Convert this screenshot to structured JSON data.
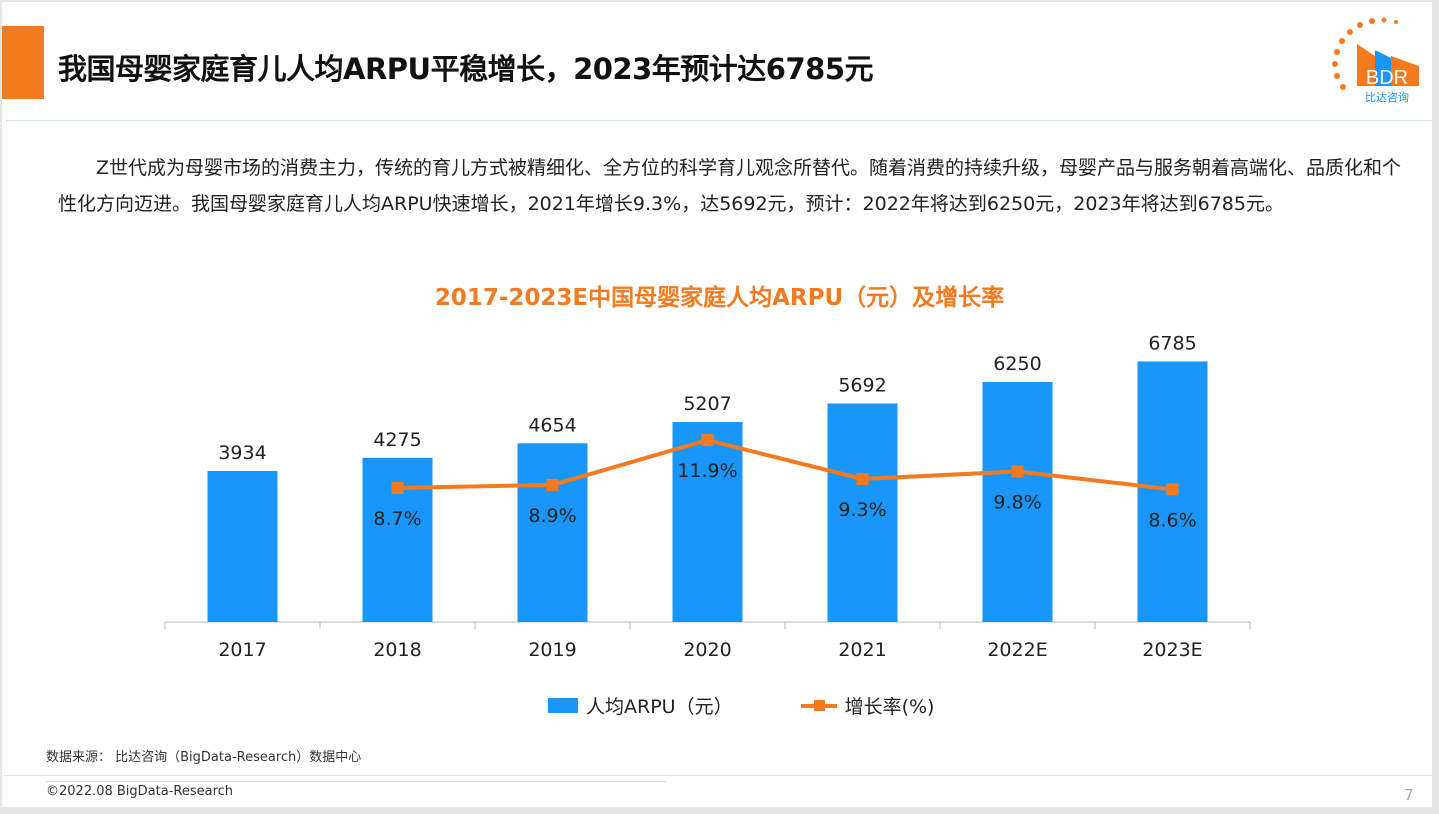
{
  "header": {
    "title": "我国母婴家庭育儿人均ARPU平稳增长，2023年预计达6785元",
    "logo_text": "BDR",
    "logo_subtext": "比达咨询"
  },
  "body_text": "Z世代成为母婴市场的消费主力，传统的育儿方式被精细化、全方位的科学育儿观念所替代。随着消费的持续升级，母婴产品与服务朝着高端化、品质化和个性化方向迈进。我国母婴家庭育儿人均ARPU快速增长，2021年增长9.3%，达5692元，预计：2022年将达到6250元，2023年将达到6785元。",
  "chart_data": {
    "type": "bar+line",
    "title": "2017-2023E中国母婴家庭人均ARPU（元）及增长率",
    "categories": [
      "2017",
      "2018",
      "2019",
      "2020",
      "2021",
      "2022E",
      "2023E"
    ],
    "series": [
      {
        "name": "人均ARPU（元）",
        "type": "bar",
        "color": "#1996fb",
        "values": [
          3934,
          4275,
          4654,
          5207,
          5692,
          6250,
          6785
        ],
        "labels": [
          "3934",
          "4275",
          "4654",
          "5207",
          "5692",
          "6250",
          "6785"
        ]
      },
      {
        "name": "增长率(%)",
        "type": "line",
        "color": "#f47a20",
        "values": [
          null,
          8.7,
          8.9,
          11.9,
          9.3,
          9.8,
          8.6
        ],
        "labels": [
          "",
          "8.7%",
          "8.9%",
          "11.9%",
          "9.3%",
          "9.8%",
          "8.6%"
        ]
      }
    ],
    "legend": "bottom",
    "grid": false
  },
  "footer": {
    "source": "数据来源： 比达咨询（BigData-Research）数据中心",
    "copyright": "©2022.08 BigData-Research",
    "page": "7"
  }
}
